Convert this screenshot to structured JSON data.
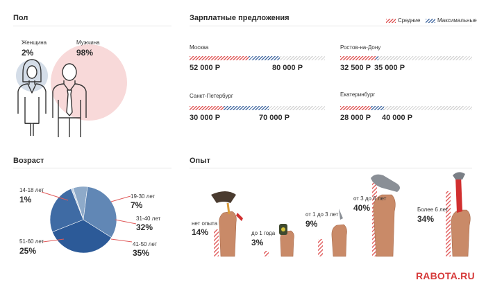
{
  "gender": {
    "title": "Пол",
    "female": {
      "label": "Женщина",
      "percent": "2%",
      "value": 2
    },
    "male": {
      "label": "Мужчина",
      "percent": "98%",
      "value": 98
    }
  },
  "salary": {
    "title": "Зарплатные предложения",
    "legend": {
      "avg": "Средние",
      "max": "Максимальные"
    },
    "scale_max": 120000,
    "cities": [
      {
        "name": "Москва",
        "avg": 52000,
        "max": 80000,
        "avg_label": "52 000 Р",
        "max_label": "80 000 Р"
      },
      {
        "name": "Ростов-на-Дону",
        "avg": 32500,
        "max": 35000,
        "avg_label": "32 500 Р",
        "max_label": "35 000 Р"
      },
      {
        "name": "Санкт-Петербург",
        "avg": 30000,
        "max": 70000,
        "avg_label": "30 000 Р",
        "max_label": "70 000 Р"
      },
      {
        "name": "Екатеринбург",
        "avg": 28000,
        "max": 40000,
        "avg_label": "28 000 Р",
        "max_label": "40 000 Р"
      }
    ]
  },
  "age": {
    "title": "Возраст",
    "groups": [
      {
        "label": "14-18 лет",
        "percent": "1%",
        "value": 1
      },
      {
        "label": "19-30 лет",
        "percent": "7%",
        "value": 7
      },
      {
        "label": "31-40 лет",
        "percent": "32%",
        "value": 32
      },
      {
        "label": "41-50 лет",
        "percent": "35%",
        "value": 35
      },
      {
        "label": "51-60 лет",
        "percent": "25%",
        "value": 25
      }
    ]
  },
  "experience": {
    "title": "Опыт",
    "groups": [
      {
        "label": "нет опыта",
        "percent": "14%",
        "value": 14
      },
      {
        "label": "до 1 года",
        "percent": "3%",
        "value": 3
      },
      {
        "label": "от 1 до 3 лет",
        "percent": "9%",
        "value": 9
      },
      {
        "label": "от 3 до 6 лет",
        "percent": "40%",
        "value": 40
      },
      {
        "label": "Более 6 лет",
        "percent": "34%",
        "value": 34
      }
    ]
  },
  "logo": "RABOTA.RU",
  "colors": {
    "avg": "#e05a5a",
    "max": "#4a6fa5",
    "male_circle": "#f8d9d9",
    "female_circle": "#d4dde8",
    "pie": [
      "#c3d2e3",
      "#8eaac9",
      "#6187b5",
      "#2c5a98",
      "#3f6ba4"
    ]
  },
  "chart_data": [
    {
      "type": "bar",
      "title": "Зарплатные предложения",
      "categories": [
        "Москва",
        "Ростов-на-Дону",
        "Санкт-Петербург",
        "Екатеринбург"
      ],
      "series": [
        {
          "name": "Средние",
          "values": [
            52000,
            32500,
            30000,
            28000
          ]
        },
        {
          "name": "Максимальные",
          "values": [
            80000,
            35000,
            70000,
            40000
          ]
        }
      ]
    },
    {
      "type": "pie",
      "title": "Возраст",
      "categories": [
        "14-18 лет",
        "19-30 лет",
        "31-40 лет",
        "41-50 лет",
        "51-60 лет"
      ],
      "values": [
        1,
        7,
        32,
        35,
        25
      ]
    },
    {
      "type": "bar",
      "title": "Опыт",
      "categories": [
        "нет опыта",
        "до 1 года",
        "от 1 до 3 лет",
        "от 3 до 6 лет",
        "Более 6 лет"
      ],
      "values": [
        14,
        3,
        9,
        40,
        34
      ]
    },
    {
      "type": "bar",
      "title": "Пол",
      "categories": [
        "Женщина",
        "Мужчина"
      ],
      "values": [
        2,
        98
      ]
    }
  ]
}
